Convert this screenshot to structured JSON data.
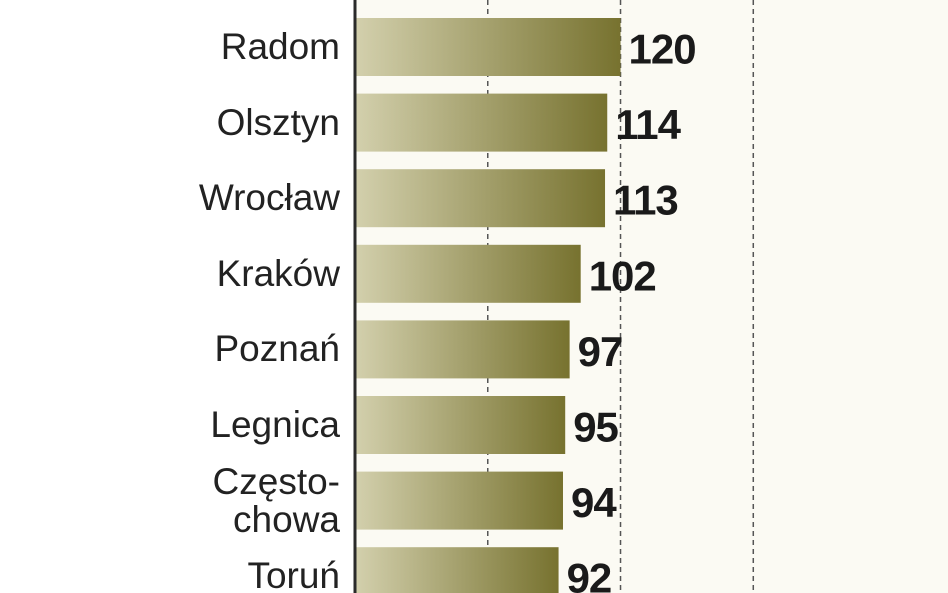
{
  "chart_data": {
    "type": "hbar",
    "categories": [
      "Radom",
      "Olsztyn",
      "Wrocław",
      "Kraków",
      "Poznań",
      "Legnica",
      "Często-\nchowa",
      "Toruń"
    ],
    "values": [
      120,
      114,
      113,
      102,
      97,
      95,
      94,
      92
    ],
    "color": "#77722f",
    "xlim": [
      0,
      268
    ],
    "xticks": [
      60,
      120,
      180
    ],
    "grid": true
  }
}
